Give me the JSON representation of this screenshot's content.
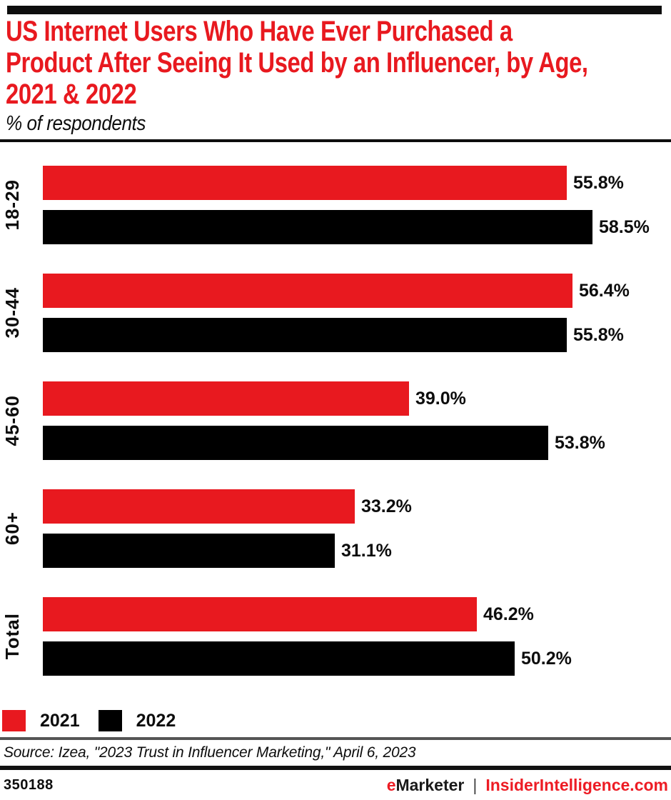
{
  "header": {
    "title_lines": [
      "US Internet Users Who Have Ever Purchased a",
      "Product After Seeing It Used by an Influencer, by Age,",
      "2021 & 2022"
    ],
    "subtitle": "% of respondents"
  },
  "chart_data": {
    "type": "bar",
    "orientation": "horizontal",
    "title": "US Internet Users Who Have Ever Purchased a Product After Seeing It Used by an Influencer, by Age, 2021 & 2022",
    "subtitle": "% of respondents",
    "categories": [
      "18-29",
      "30-44",
      "45-60",
      "60+",
      "Total"
    ],
    "series": [
      {
        "name": "2021",
        "color": "#e8191f",
        "values": [
          55.8,
          56.4,
          39.0,
          33.2,
          46.2
        ]
      },
      {
        "name": "2022",
        "color": "#000000",
        "values": [
          58.5,
          55.8,
          53.8,
          31.1,
          50.2
        ]
      }
    ],
    "value_suffix": "%",
    "data_labels": true,
    "xlim": [
      0,
      62
    ],
    "grid": false,
    "legend_position": "bottom"
  },
  "legend": {
    "items": [
      {
        "label": "2021",
        "color": "#e8191f"
      },
      {
        "label": "2022",
        "color": "#000000"
      }
    ]
  },
  "source": "Source: Izea, \"2023 Trust in Influencer Marketing,\" April 6, 2023",
  "footer": {
    "chart_id": "350188",
    "brand_e": "e",
    "brand_rest": "Marketer",
    "separator": "|",
    "site": "InsiderIntelligence.com"
  },
  "colors": {
    "accent_red": "#e8191f",
    "footer_red": "#ed1c24",
    "bar_black": "#000000"
  }
}
